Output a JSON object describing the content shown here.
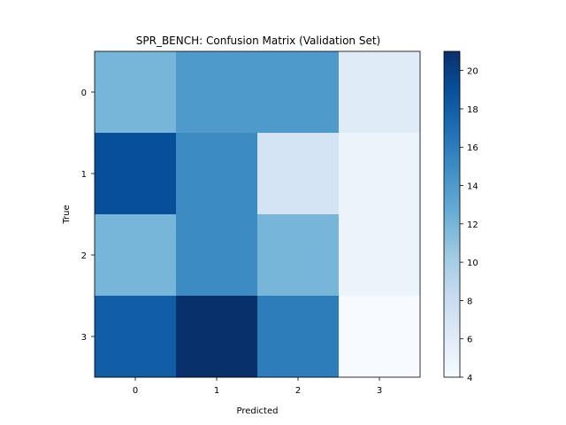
{
  "chart_data": {
    "type": "heatmap",
    "title": "SPR_BENCH: Confusion Matrix (Validation Set)",
    "xlabel": "Predicted",
    "ylabel": "True",
    "x_categories": [
      "0",
      "1",
      "2",
      "3"
    ],
    "y_categories": [
      "0",
      "1",
      "2",
      "3"
    ],
    "values": [
      [
        12,
        14,
        14,
        6
      ],
      [
        19,
        15,
        7,
        5
      ],
      [
        12,
        15,
        12,
        5
      ],
      [
        18,
        21,
        16,
        4
      ]
    ],
    "colormap": "Blues",
    "colorbar": {
      "vmin": 4,
      "vmax": 21,
      "ticks": [
        4,
        6,
        8,
        10,
        12,
        14,
        16,
        18,
        20
      ]
    }
  }
}
